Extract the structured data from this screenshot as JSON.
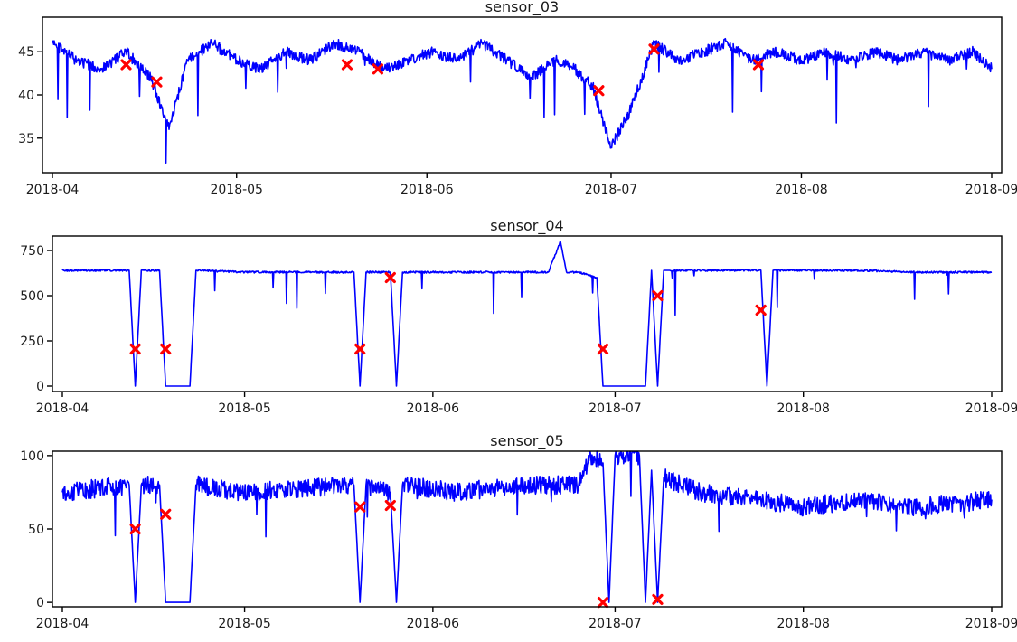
{
  "chart_data": [
    {
      "type": "line",
      "title": "sensor_03",
      "xlabel": "",
      "ylabel": "",
      "x_range": [
        "2018-04-01",
        "2018-09-01"
      ],
      "x_ticks": [
        "2018-04",
        "2018-05",
        "2018-06",
        "2018-07",
        "2018-08",
        "2018-09"
      ],
      "y_ticks": [
        35,
        40,
        45
      ],
      "ylim": [
        31,
        49
      ],
      "grid": false,
      "line_color": "#0000ff",
      "marker_color": "#ff0000",
      "series": [
        {
          "x": [
            "2018-04-01",
            "2018-04-05",
            "2018-04-09",
            "2018-04-13",
            "2018-04-17",
            "2018-04-20",
            "2018-04-23",
            "2018-04-27",
            "2018-05-01",
            "2018-05-05",
            "2018-05-09",
            "2018-05-13",
            "2018-05-17",
            "2018-05-21",
            "2018-05-25",
            "2018-05-29",
            "2018-06-02",
            "2018-06-06",
            "2018-06-10",
            "2018-06-14",
            "2018-06-18",
            "2018-06-22",
            "2018-06-25",
            "2018-06-28",
            "2018-07-01",
            "2018-07-04",
            "2018-07-08",
            "2018-07-12",
            "2018-07-16",
            "2018-07-20",
            "2018-07-24",
            "2018-07-28",
            "2018-08-01",
            "2018-08-05",
            "2018-08-09",
            "2018-08-13",
            "2018-08-17",
            "2018-08-21",
            "2018-08-25",
            "2018-08-29",
            "2018-09-01"
          ],
          "values": [
            46,
            44,
            43,
            45,
            42,
            36,
            44,
            46,
            44,
            43,
            45,
            44,
            46,
            45,
            43,
            44,
            45,
            44,
            46,
            44,
            42,
            44,
            43,
            41,
            34,
            38,
            46,
            44,
            45,
            46,
            44,
            45,
            44,
            45,
            44,
            45,
            44,
            45,
            44,
            45,
            43
          ]
        }
      ],
      "anomalies": {
        "x": [
          "2018-04-13",
          "2018-04-18",
          "2018-05-19",
          "2018-05-24",
          "2018-06-29",
          "2018-07-08",
          "2018-07-25"
        ],
        "values": [
          43.5,
          41.5,
          43.5,
          43,
          40.5,
          45.3,
          43.5
        ]
      }
    },
    {
      "type": "line",
      "title": "sensor_04",
      "xlabel": "",
      "ylabel": "",
      "x_range": [
        "2018-04-01",
        "2018-09-01"
      ],
      "x_ticks": [
        "2018-04",
        "2018-05",
        "2018-06",
        "2018-07",
        "2018-08",
        "2018-09"
      ],
      "y_ticks": [
        0,
        250,
        500,
        750
      ],
      "ylim": [
        -30,
        830
      ],
      "grid": false,
      "line_color": "#0000ff",
      "marker_color": "#ff0000",
      "series": [
        {
          "x": [
            "2018-04-01",
            "2018-04-12",
            "2018-04-13",
            "2018-04-14",
            "2018-04-17",
            "2018-04-18",
            "2018-04-19",
            "2018-04-22",
            "2018-04-23",
            "2018-05-01",
            "2018-05-19",
            "2018-05-20",
            "2018-05-21",
            "2018-05-25",
            "2018-05-26",
            "2018-05-27",
            "2018-06-05",
            "2018-06-20",
            "2018-06-22",
            "2018-06-23",
            "2018-06-25",
            "2018-06-28",
            "2018-06-29",
            "2018-06-30",
            "2018-07-01",
            "2018-07-06",
            "2018-07-07",
            "2018-07-08",
            "2018-07-09",
            "2018-07-10",
            "2018-07-20",
            "2018-07-25",
            "2018-07-26",
            "2018-07-27",
            "2018-08-10",
            "2018-08-20",
            "2018-09-01"
          ],
          "values": [
            640,
            640,
            0,
            640,
            640,
            0,
            0,
            0,
            640,
            630,
            630,
            0,
            630,
            630,
            0,
            630,
            630,
            630,
            800,
            630,
            630,
            600,
            0,
            0,
            0,
            0,
            640,
            0,
            640,
            640,
            640,
            640,
            0,
            640,
            640,
            630,
            630
          ]
        }
      ],
      "anomalies": {
        "x": [
          "2018-04-13",
          "2018-04-18",
          "2018-05-20",
          "2018-05-25",
          "2018-06-29",
          "2018-07-08",
          "2018-07-25"
        ],
        "values": [
          205,
          205,
          205,
          600,
          205,
          500,
          420
        ]
      }
    },
    {
      "type": "line",
      "title": "sensor_05",
      "xlabel": "",
      "ylabel": "",
      "x_range": [
        "2018-04-01",
        "2018-09-01"
      ],
      "x_ticks": [
        "2018-04",
        "2018-05",
        "2018-06",
        "2018-07",
        "2018-08",
        "2018-09"
      ],
      "y_ticks": [
        0,
        50,
        100
      ],
      "ylim": [
        -3,
        103
      ],
      "grid": false,
      "line_color": "#0000ff",
      "marker_color": "#ff0000",
      "series": [
        {
          "x": [
            "2018-04-01",
            "2018-04-12",
            "2018-04-13",
            "2018-04-14",
            "2018-04-17",
            "2018-04-18",
            "2018-04-19",
            "2018-04-22",
            "2018-04-23",
            "2018-05-01",
            "2018-05-19",
            "2018-05-20",
            "2018-05-21",
            "2018-05-25",
            "2018-05-26",
            "2018-05-27",
            "2018-06-05",
            "2018-06-15",
            "2018-06-25",
            "2018-06-27",
            "2018-06-29",
            "2018-06-30",
            "2018-07-01",
            "2018-07-05",
            "2018-07-06",
            "2018-07-07",
            "2018-07-08",
            "2018-07-09",
            "2018-07-15",
            "2018-07-25",
            "2018-08-01",
            "2018-08-10",
            "2018-08-20",
            "2018-09-01"
          ],
          "values": [
            75,
            80,
            0,
            80,
            80,
            0,
            0,
            0,
            80,
            75,
            80,
            0,
            80,
            75,
            0,
            80,
            75,
            80,
            80,
            100,
            95,
            0,
            100,
            100,
            0,
            90,
            0,
            85,
            75,
            70,
            65,
            70,
            65,
            70
          ]
        }
      ],
      "anomalies": {
        "x": [
          "2018-04-13",
          "2018-04-18",
          "2018-05-20",
          "2018-05-25",
          "2018-06-29",
          "2018-07-08"
        ],
        "values": [
          50,
          60,
          65,
          66,
          0,
          2
        ]
      }
    }
  ]
}
